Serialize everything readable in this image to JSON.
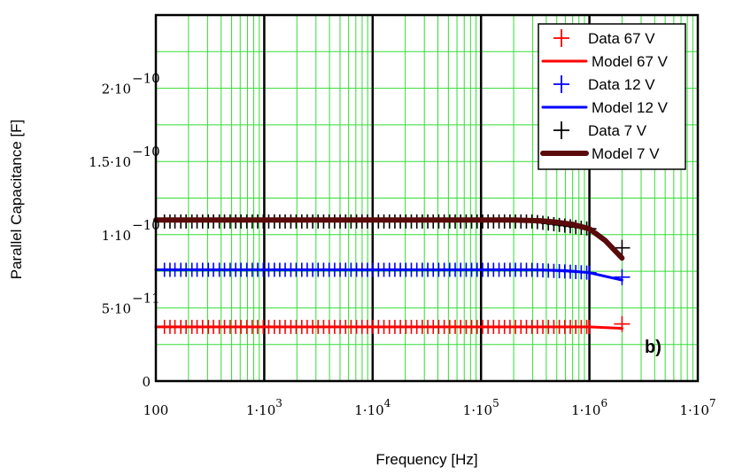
{
  "chart_data": {
    "type": "scatter",
    "xscale": "log",
    "xlim": [
      100,
      10000000
    ],
    "ylim": [
      0,
      2.5e-10
    ],
    "xlabel": "Frequency [Hz]",
    "ylabel": "Parallel Capacitance [F]",
    "annotation": "b)",
    "x_ticks": [
      {
        "value": 100,
        "label": "100"
      },
      {
        "value": 1000,
        "base": "1·10",
        "exp": "3"
      },
      {
        "value": 10000,
        "base": "1·10",
        "exp": "4"
      },
      {
        "value": 100000,
        "base": "1·10",
        "exp": "5"
      },
      {
        "value": 1000000,
        "base": "1·10",
        "exp": "6"
      },
      {
        "value": 10000000,
        "base": "1·10",
        "exp": "7"
      }
    ],
    "y_ticks": [
      {
        "value": 0,
        "label": "0"
      },
      {
        "value": 5e-11,
        "base": "5·10",
        "exp": "−11"
      },
      {
        "value": 1e-10,
        "base": "1·10",
        "exp": "−10"
      },
      {
        "value": 1.5e-10,
        "base": "1.5·10",
        "exp": "−10"
      },
      {
        "value": 2e-10,
        "base": "2·10",
        "exp": "−10"
      }
    ],
    "x_freq_points": [
      120,
      135,
      150,
      170,
      190,
      215,
      240,
      270,
      305,
      340,
      385,
      430,
      485,
      545,
      610,
      690,
      775,
      870,
      980,
      1100,
      1240,
      1390,
      1560,
      1760,
      1970,
      2220,
      2490,
      2800,
      3140,
      3530,
      3970,
      4460,
      5010,
      5630,
      6320,
      7100,
      7980,
      8960,
      10070,
      11310,
      12710,
      14280,
      16040,
      18020,
      20250,
      22750,
      25560,
      28710,
      32260,
      36240,
      40720,
      45750,
      51400,
      57750,
      64880,
      72890,
      81890,
      92000,
      103360,
      116120,
      130460,
      146570,
      164670,
      185000,
      207850,
      233520,
      262360,
      294760,
      331160,
      372050,
      418000,
      469620,
      527620,
      592780,
      665980,
      748220,
      840620,
      944430,
      1000000,
      2000000
    ],
    "series": [
      {
        "name": "Data 67 V",
        "kind": "data",
        "color": "#ff0000",
        "low_value": 3.7e-11,
        "f_hi": 1000000,
        "hi_value": 3.7e-11,
        "end_value": 3.9e-11
      },
      {
        "name": "Model 67 V",
        "kind": "model",
        "color": "#ff0000",
        "points": [
          [
            100,
            3.7e-11
          ],
          [
            300000,
            3.7e-11
          ],
          [
            1000000,
            3.7e-11
          ],
          [
            2000000,
            3.6e-11
          ]
        ]
      },
      {
        "name": "Data 12 V",
        "kind": "data",
        "color": "#0000ff",
        "low_value": 7.6e-11,
        "f_hi": 1000000,
        "hi_value": 7.4e-11,
        "end_value": 7.1e-11
      },
      {
        "name": "Model 12 V",
        "kind": "model",
        "color": "#0000ff",
        "points": [
          [
            100,
            7.6e-11
          ],
          [
            300000,
            7.6e-11
          ],
          [
            600000,
            7.55e-11
          ],
          [
            1000000,
            7.4e-11
          ],
          [
            2000000,
            6.9e-11
          ]
        ]
      },
      {
        "name": "Data 7 V",
        "kind": "data",
        "color": "#000000",
        "low_value": 1.09e-10,
        "f_hi": 1000000,
        "hi_value": 1.04e-10,
        "end_value": 9.1e-11
      },
      {
        "name": "Model 7 V",
        "kind": "model",
        "color": "#5a0a0a",
        "points": [
          [
            100,
            1.1e-10
          ],
          [
            200000,
            1.1e-10
          ],
          [
            350000,
            1.095e-10
          ],
          [
            500000,
            1.085e-10
          ],
          [
            700000,
            1.07e-10
          ],
          [
            1000000,
            1.04e-10
          ],
          [
            1400000,
            9.6e-11
          ],
          [
            2000000,
            8.4e-11
          ]
        ]
      }
    ],
    "legend": [
      {
        "label": "Data 67 V",
        "kind": "data",
        "color": "#ff0000"
      },
      {
        "label": "Model 67 V",
        "kind": "model",
        "color": "#ff0000"
      },
      {
        "label": "Data 12 V",
        "kind": "data",
        "color": "#0000ff"
      },
      {
        "label": "Model 12 V",
        "kind": "model",
        "color": "#0000ff"
      },
      {
        "label": "Data 7 V",
        "kind": "data",
        "color": "#000000"
      },
      {
        "label": "Model 7 V",
        "kind": "model",
        "color": "#5a0a0a"
      }
    ],
    "legend_position": "top-right",
    "grid": true,
    "grid_color": "#33dd33"
  }
}
